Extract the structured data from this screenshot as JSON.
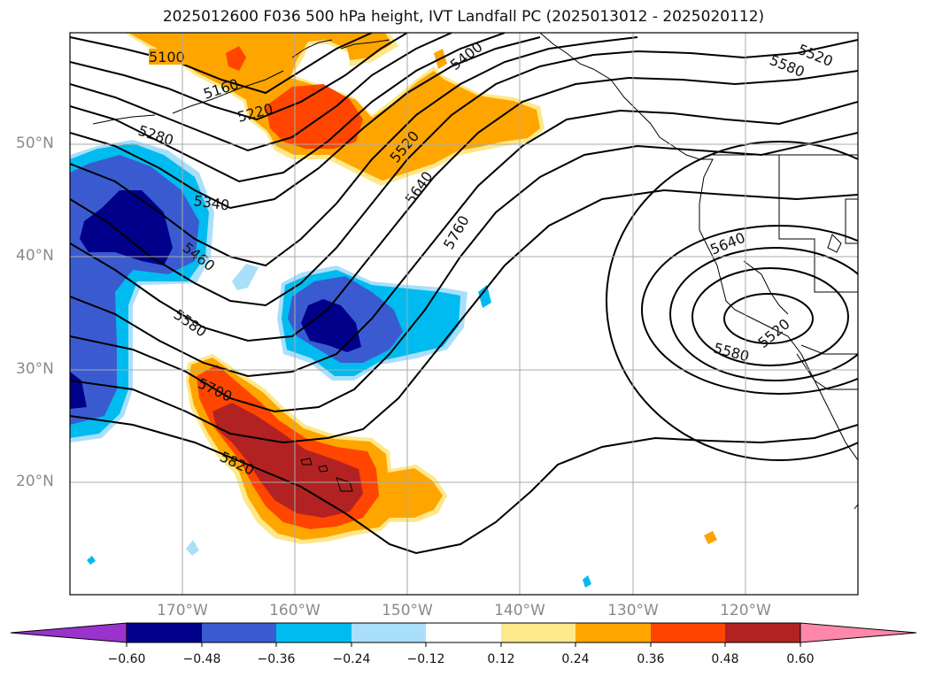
{
  "title": "2025012600 F036 500 hPa height, IVT Landfall PC (2025013012 - 2025020112)",
  "lat_labels": [
    "50°N",
    "40°N",
    "30°N",
    "20°N"
  ],
  "lon_labels": [
    "170°W",
    "160°W",
    "150°W",
    "140°W",
    "130°W",
    "120°W"
  ],
  "contour_labels": [
    "5100",
    "5160",
    "5220",
    "5280",
    "5340",
    "5460",
    "5580",
    "5700",
    "5820",
    "5400",
    "5520",
    "5640",
    "5760",
    "5520",
    "5580",
    "5640",
    "5580",
    "5520"
  ],
  "colorbar": {
    "ticks": [
      "−0.60",
      "−0.48",
      "−0.36",
      "−0.24",
      "−0.12",
      "0.12",
      "0.24",
      "0.36",
      "0.48",
      "0.60"
    ],
    "colors": [
      "#9933cc",
      "#00008b",
      "#3a5bd0",
      "#00bbf0",
      "#aadffa",
      "#ffffff",
      "#fde88a",
      "#ffa500",
      "#ff4500",
      "#b22222",
      "#ff88aa"
    ]
  },
  "colors": {
    "neg_1": "#00008b",
    "neg_2": "#3a5bd0",
    "neg_3": "#00bbf0",
    "neg_4": "#aadffa",
    "pos_1": "#fde88a",
    "pos_2": "#ffa500",
    "pos_3": "#ff4500",
    "pos_4": "#b22222"
  }
}
